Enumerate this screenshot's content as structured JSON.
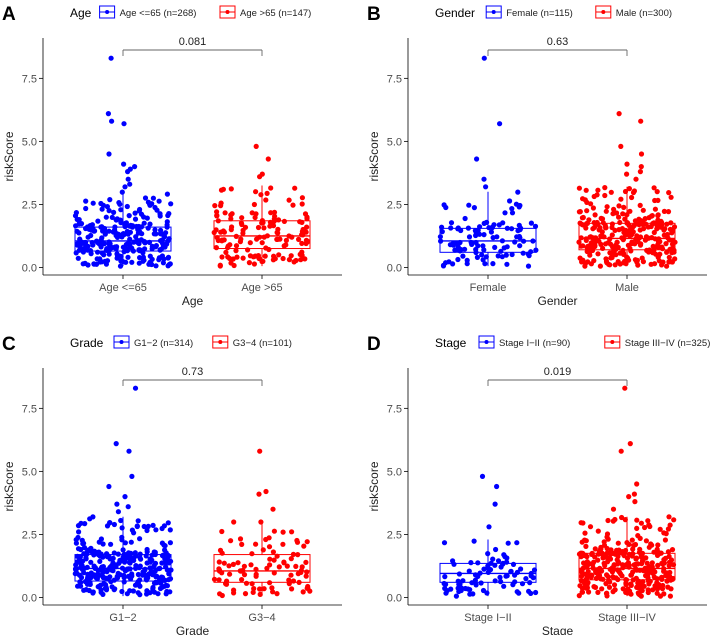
{
  "colors": {
    "blue": "#0000ff",
    "red": "#ff0000",
    "axis": "#4d4d4d",
    "bracket": "#666666"
  },
  "chart_data": [
    {
      "panel": "A",
      "type": "boxplot",
      "legend_title": "Age",
      "legend_items": [
        "Age <=65 (n=268)",
        "Age >65 (n=147)"
      ],
      "xlabel": "Age",
      "ylabel": "riskScore",
      "categories": [
        "Age <=65",
        "Age >65"
      ],
      "yticks": [
        "0.0",
        "2.5",
        "5.0",
        "7.5"
      ],
      "ylim": [
        -0.3,
        9.1
      ],
      "p_value": "0.081",
      "groups": [
        {
          "name": "Age <=65",
          "n": 268,
          "q1": 0.65,
          "median": 1.05,
          "q3": 1.6,
          "whisker_low": 0.05,
          "whisker_high": 3.0,
          "outliers": [
            3.2,
            3.3,
            3.5,
            3.8,
            3.9,
            4.0,
            4.1,
            4.5,
            5.7,
            5.8,
            6.1,
            8.3
          ]
        },
        {
          "name": "Age >65",
          "n": 147,
          "q1": 0.75,
          "median": 1.25,
          "q3": 1.85,
          "whisker_low": 0.05,
          "whisker_high": 3.25,
          "outliers": [
            3.6,
            3.7,
            4.3,
            4.8
          ]
        }
      ]
    },
    {
      "panel": "B",
      "type": "boxplot",
      "legend_title": "Gender",
      "legend_items": [
        "Female (n=115)",
        "Male (n=300)"
      ],
      "xlabel": "Gender",
      "ylabel": "riskScore",
      "categories": [
        "Female",
        "Male"
      ],
      "yticks": [
        "0.0",
        "2.5",
        "5.0",
        "7.5"
      ],
      "ylim": [
        -0.3,
        9.1
      ],
      "p_value": "0.63",
      "groups": [
        {
          "name": "Female",
          "n": 115,
          "q1": 0.6,
          "median": 1.05,
          "q3": 1.55,
          "whisker_low": 0.05,
          "whisker_high": 3.0,
          "outliers": [
            3.2,
            3.5,
            4.3,
            5.7,
            8.3
          ]
        },
        {
          "name": "Male",
          "n": 300,
          "q1": 0.7,
          "median": 1.15,
          "q3": 1.75,
          "whisker_low": 0.05,
          "whisker_high": 3.2,
          "outliers": [
            3.5,
            3.7,
            3.8,
            4.0,
            4.1,
            4.5,
            4.8,
            5.8,
            6.1
          ]
        }
      ]
    },
    {
      "panel": "C",
      "type": "boxplot",
      "legend_title": "Grade",
      "legend_items": [
        "G1−2 (n=314)",
        "G3−4 (n=101)"
      ],
      "xlabel": "Grade",
      "ylabel": "riskScore",
      "categories": [
        "G1−2",
        "G3−4"
      ],
      "yticks": [
        "0.0",
        "2.5",
        "5.0",
        "7.5"
      ],
      "ylim": [
        -0.3,
        9.1
      ],
      "p_value": "0.73",
      "groups": [
        {
          "name": "G1−2",
          "n": 314,
          "q1": 0.65,
          "median": 1.15,
          "q3": 1.7,
          "whisker_low": 0.05,
          "whisker_high": 3.2,
          "outliers": [
            3.4,
            3.6,
            3.7,
            4.0,
            4.4,
            4.8,
            5.8,
            6.1,
            8.3
          ]
        },
        {
          "name": "G3−4",
          "n": 101,
          "q1": 0.6,
          "median": 1.05,
          "q3": 1.7,
          "whisker_low": 0.05,
          "whisker_high": 3.0,
          "outliers": [
            3.5,
            4.1,
            4.2,
            5.8
          ]
        }
      ]
    },
    {
      "panel": "D",
      "type": "boxplot",
      "legend_title": "Stage",
      "legend_items": [
        "Stage I−II (n=90)",
        "Stage III−IV (n=325)"
      ],
      "xlabel": "Stage",
      "ylabel": "riskScore",
      "categories": [
        "Stage I−II",
        "Stage III−IV"
      ],
      "yticks": [
        "0.0",
        "2.5",
        "5.0",
        "7.5"
      ],
      "ylim": [
        -0.3,
        9.1
      ],
      "p_value": "0.019",
      "groups": [
        {
          "name": "Stage I−II",
          "n": 90,
          "q1": 0.6,
          "median": 0.95,
          "q3": 1.35,
          "whisker_low": 0.05,
          "whisker_high": 2.3,
          "outliers": [
            2.8,
            3.7,
            4.4,
            4.8
          ]
        },
        {
          "name": "Stage III−IV",
          "n": 325,
          "q1": 0.7,
          "median": 1.15,
          "q3": 1.75,
          "whisker_low": 0.05,
          "whisker_high": 3.2,
          "outliers": [
            3.5,
            3.8,
            4.0,
            4.1,
            4.5,
            5.8,
            6.1,
            8.3
          ]
        }
      ]
    }
  ]
}
